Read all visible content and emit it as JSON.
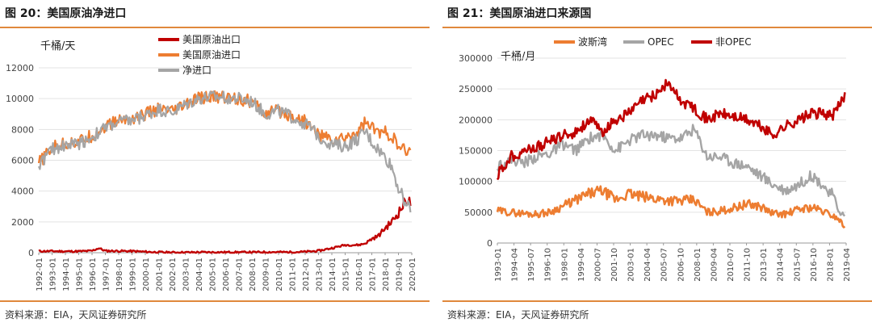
{
  "left": {
    "title": "图 20：美国原油净进口",
    "source": "资料来源：EIA，天风证券研究所",
    "chart_data": {
      "type": "line",
      "unit_label": "千桶/天",
      "ylim": [
        0,
        12000
      ],
      "yticks": [
        0,
        2000,
        4000,
        6000,
        8000,
        10000,
        12000
      ],
      "xlim": [
        1992.0,
        2020.0
      ],
      "xtick_labels": [
        "1992-01",
        "1993-01",
        "1994-01",
        "1995-01",
        "1996-01",
        "1997-01",
        "1998-01",
        "1999-01",
        "2000-01",
        "2001-01",
        "2002-01",
        "2003-01",
        "2004-01",
        "2005-01",
        "2006-01",
        "2007-01",
        "2008-01",
        "2009-01",
        "2010-01",
        "2011-01",
        "2012-01",
        "2013-01",
        "2014-01",
        "2015-01",
        "2016-01",
        "2017-01",
        "2018-01",
        "2019-01",
        "2020-01"
      ],
      "legend_placement": "top-center",
      "grid": true,
      "series": [
        {
          "name": "美国原油出口",
          "color": "#c00000",
          "x": [
            1992,
            1993,
            1994,
            1995,
            1996,
            1996.5,
            1997,
            1998,
            1999,
            2000,
            2001,
            2002,
            2003,
            2004,
            2005,
            2006,
            2007,
            2008,
            2009,
            2010,
            2011,
            2012,
            2013,
            2014,
            2015,
            2015.5,
            2016,
            2016.5,
            2017,
            2017.5,
            2018,
            2018.5,
            2019,
            2019.3,
            2019.6,
            2019.9
          ],
          "y": [
            100,
            100,
            90,
            90,
            120,
            300,
            120,
            110,
            100,
            60,
            30,
            20,
            20,
            30,
            30,
            30,
            30,
            30,
            40,
            40,
            40,
            60,
            120,
            300,
            500,
            500,
            500,
            600,
            900,
            1100,
            1600,
            2000,
            2600,
            3000,
            3500,
            3200
          ]
        },
        {
          "name": "美国原油进口",
          "color": "#ed7d31",
          "x": [
            1992,
            1993,
            1994,
            1995,
            1996,
            1997,
            1998,
            1999,
            2000,
            2001,
            2002,
            2003,
            2004,
            2005,
            2006,
            2007,
            2008,
            2009,
            2010,
            2011,
            2012,
            2013,
            2014,
            2015,
            2016,
            2016.5,
            2017,
            2017.5,
            2018,
            2018.5,
            2019,
            2019.5,
            2019.9
          ],
          "y": [
            5800,
            6800,
            7100,
            7200,
            7600,
            8200,
            8600,
            8700,
            9000,
            9300,
            9100,
            9600,
            10000,
            10100,
            10100,
            10000,
            9800,
            9000,
            9200,
            8900,
            8500,
            7700,
            7300,
            7400,
            7900,
            8500,
            8100,
            7800,
            7800,
            7600,
            6800,
            6600,
            6500
          ]
        },
        {
          "name": "净进口",
          "color": "#a5a5a5",
          "x": [
            1992,
            1993,
            1994,
            1995,
            1996,
            1997,
            1998,
            1999,
            2000,
            2001,
            2002,
            2003,
            2004,
            2005,
            2006,
            2007,
            2008,
            2009,
            2010,
            2011,
            2012,
            2013,
            2014,
            2015,
            2016,
            2016.5,
            2017,
            2017.5,
            2018,
            2018.5,
            2019,
            2019.5,
            2019.9
          ],
          "y": [
            5700,
            6700,
            7000,
            7100,
            7500,
            8100,
            8500,
            8600,
            8900,
            9300,
            9100,
            9600,
            10000,
            10100,
            10100,
            10000,
            9800,
            9000,
            9200,
            8800,
            8400,
            7600,
            7000,
            6900,
            7400,
            7900,
            7200,
            6700,
            6200,
            5600,
            4200,
            3300,
            2900
          ]
        }
      ]
    }
  },
  "right": {
    "title": "图 21：美国原油进口来源国",
    "source": "资料来源：EIA，天风证券研究所",
    "chart_data": {
      "type": "line",
      "unit_label": "千桶/月",
      "ylim": [
        0,
        300000
      ],
      "yticks": [
        0,
        50000,
        100000,
        150000,
        200000,
        250000,
        300000
      ],
      "xlim": [
        1993.0,
        2019.6
      ],
      "xtick_labels": [
        "1993-01",
        "1994-04",
        "1995-07",
        "1996-10",
        "1998-01",
        "1999-04",
        "2000-07",
        "2001-10",
        "2003-01",
        "2004-04",
        "2005-07",
        "2006-10",
        "2008-01",
        "2009-04",
        "2010-07",
        "2011-10",
        "2013-01",
        "2014-04",
        "2015-07",
        "2016-10",
        "2018-01",
        "2019-04"
      ],
      "legend_placement": "top-left",
      "grid": true,
      "series": [
        {
          "name": "波斯湾",
          "color": "#ed7d31",
          "x": [
            1993,
            1994,
            1995,
            1996,
            1997,
            1998,
            1999,
            2000,
            2001,
            2002,
            2003,
            2004,
            2005,
            2006,
            2007,
            2008,
            2009,
            2010,
            2011,
            2012,
            2013,
            2014,
            2015,
            2016,
            2017,
            2018,
            2019,
            2019.5
          ],
          "y": [
            52000,
            50000,
            48000,
            47000,
            50000,
            60000,
            70000,
            80000,
            85000,
            70000,
            80000,
            75000,
            72000,
            70000,
            68000,
            70000,
            50000,
            52000,
            57000,
            63000,
            60000,
            48000,
            47000,
            55000,
            58000,
            50000,
            40000,
            26000
          ]
        },
        {
          "name": "OPEC",
          "color": "#a5a5a5",
          "x": [
            1993,
            1994,
            1995,
            1996,
            1997,
            1998,
            1999,
            2000,
            2001,
            2002,
            2003,
            2004,
            2005,
            2006,
            2007,
            2008,
            2009,
            2010,
            2011,
            2012,
            2013,
            2014,
            2015,
            2016,
            2017,
            2018,
            2018.5,
            2019,
            2019.5
          ],
          "y": [
            125000,
            135000,
            130000,
            140000,
            145000,
            160000,
            150000,
            170000,
            175000,
            150000,
            165000,
            175000,
            175000,
            170000,
            170000,
            185000,
            140000,
            140000,
            130000,
            125000,
            110000,
            95000,
            85000,
            95000,
            110000,
            90000,
            80000,
            55000,
            42000
          ]
        },
        {
          "name": "非OPEC",
          "color": "#c00000",
          "x": [
            1993,
            1994,
            1995,
            1996,
            1997,
            1998,
            1999,
            2000,
            2001,
            2002,
            2003,
            2004,
            2005,
            2006,
            2007,
            2008,
            2009,
            2010,
            2011,
            2012,
            2013,
            2014,
            2015,
            2016,
            2017,
            2018,
            2018.5,
            2019,
            2019.5
          ],
          "y": [
            110000,
            140000,
            150000,
            155000,
            165000,
            175000,
            180000,
            200000,
            180000,
            200000,
            210000,
            230000,
            240000,
            260000,
            230000,
            220000,
            200000,
            210000,
            205000,
            200000,
            190000,
            175000,
            190000,
            200000,
            210000,
            210000,
            205000,
            220000,
            240000
          ]
        }
      ]
    }
  }
}
